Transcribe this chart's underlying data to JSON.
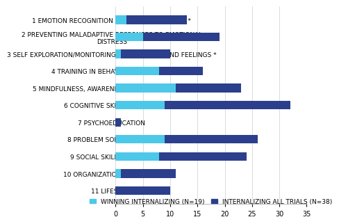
{
  "categories": [
    "1 EMOTION RECOGNITION AND DIFFERENTIATION *",
    "2 PREVENTING MALADAPTIVE RESPONSES TO EMOTIONAL\nDISTRESS",
    "3 SELF EXPLORATION/MONITORING OF THOUGHTS AND FEELINGS *",
    "4 TRAINING IN BEHAVIOR REGULATION",
    "5 MINDFULNESS, AWARENESS AND RELAXATION **",
    "6 COGNITIVE SKILLS TRAINING",
    "7 PSYCHOEDUCATION",
    "8 PROBLEM SOLVING SKILLS",
    "9 SOCIAL SKILLS TRAINING",
    "10 ORGANIZATIONAL SKILLS **",
    "11 LIFESTYLE"
  ],
  "winning_values": [
    2,
    5,
    1,
    8,
    11,
    9,
    0,
    9,
    8,
    1,
    0
  ],
  "total_values": [
    13,
    19,
    10,
    16,
    23,
    32,
    1,
    26,
    24,
    11,
    10
  ],
  "winning_color": "#4dc8e8",
  "total_color": "#2b3f8c",
  "winning_label": "WINNING INTERNALIZING (N=19)",
  "total_label": "INTERNALIZING ALL TRIALS (N=38)",
  "xlim": [
    0,
    35
  ],
  "xticks": [
    0,
    5,
    10,
    15,
    20,
    25,
    30,
    35
  ],
  "background_color": "#ffffff",
  "bar_height": 0.5,
  "tick_fontsize": 7,
  "label_fontsize": 6.5,
  "legend_fontsize": 6.5
}
